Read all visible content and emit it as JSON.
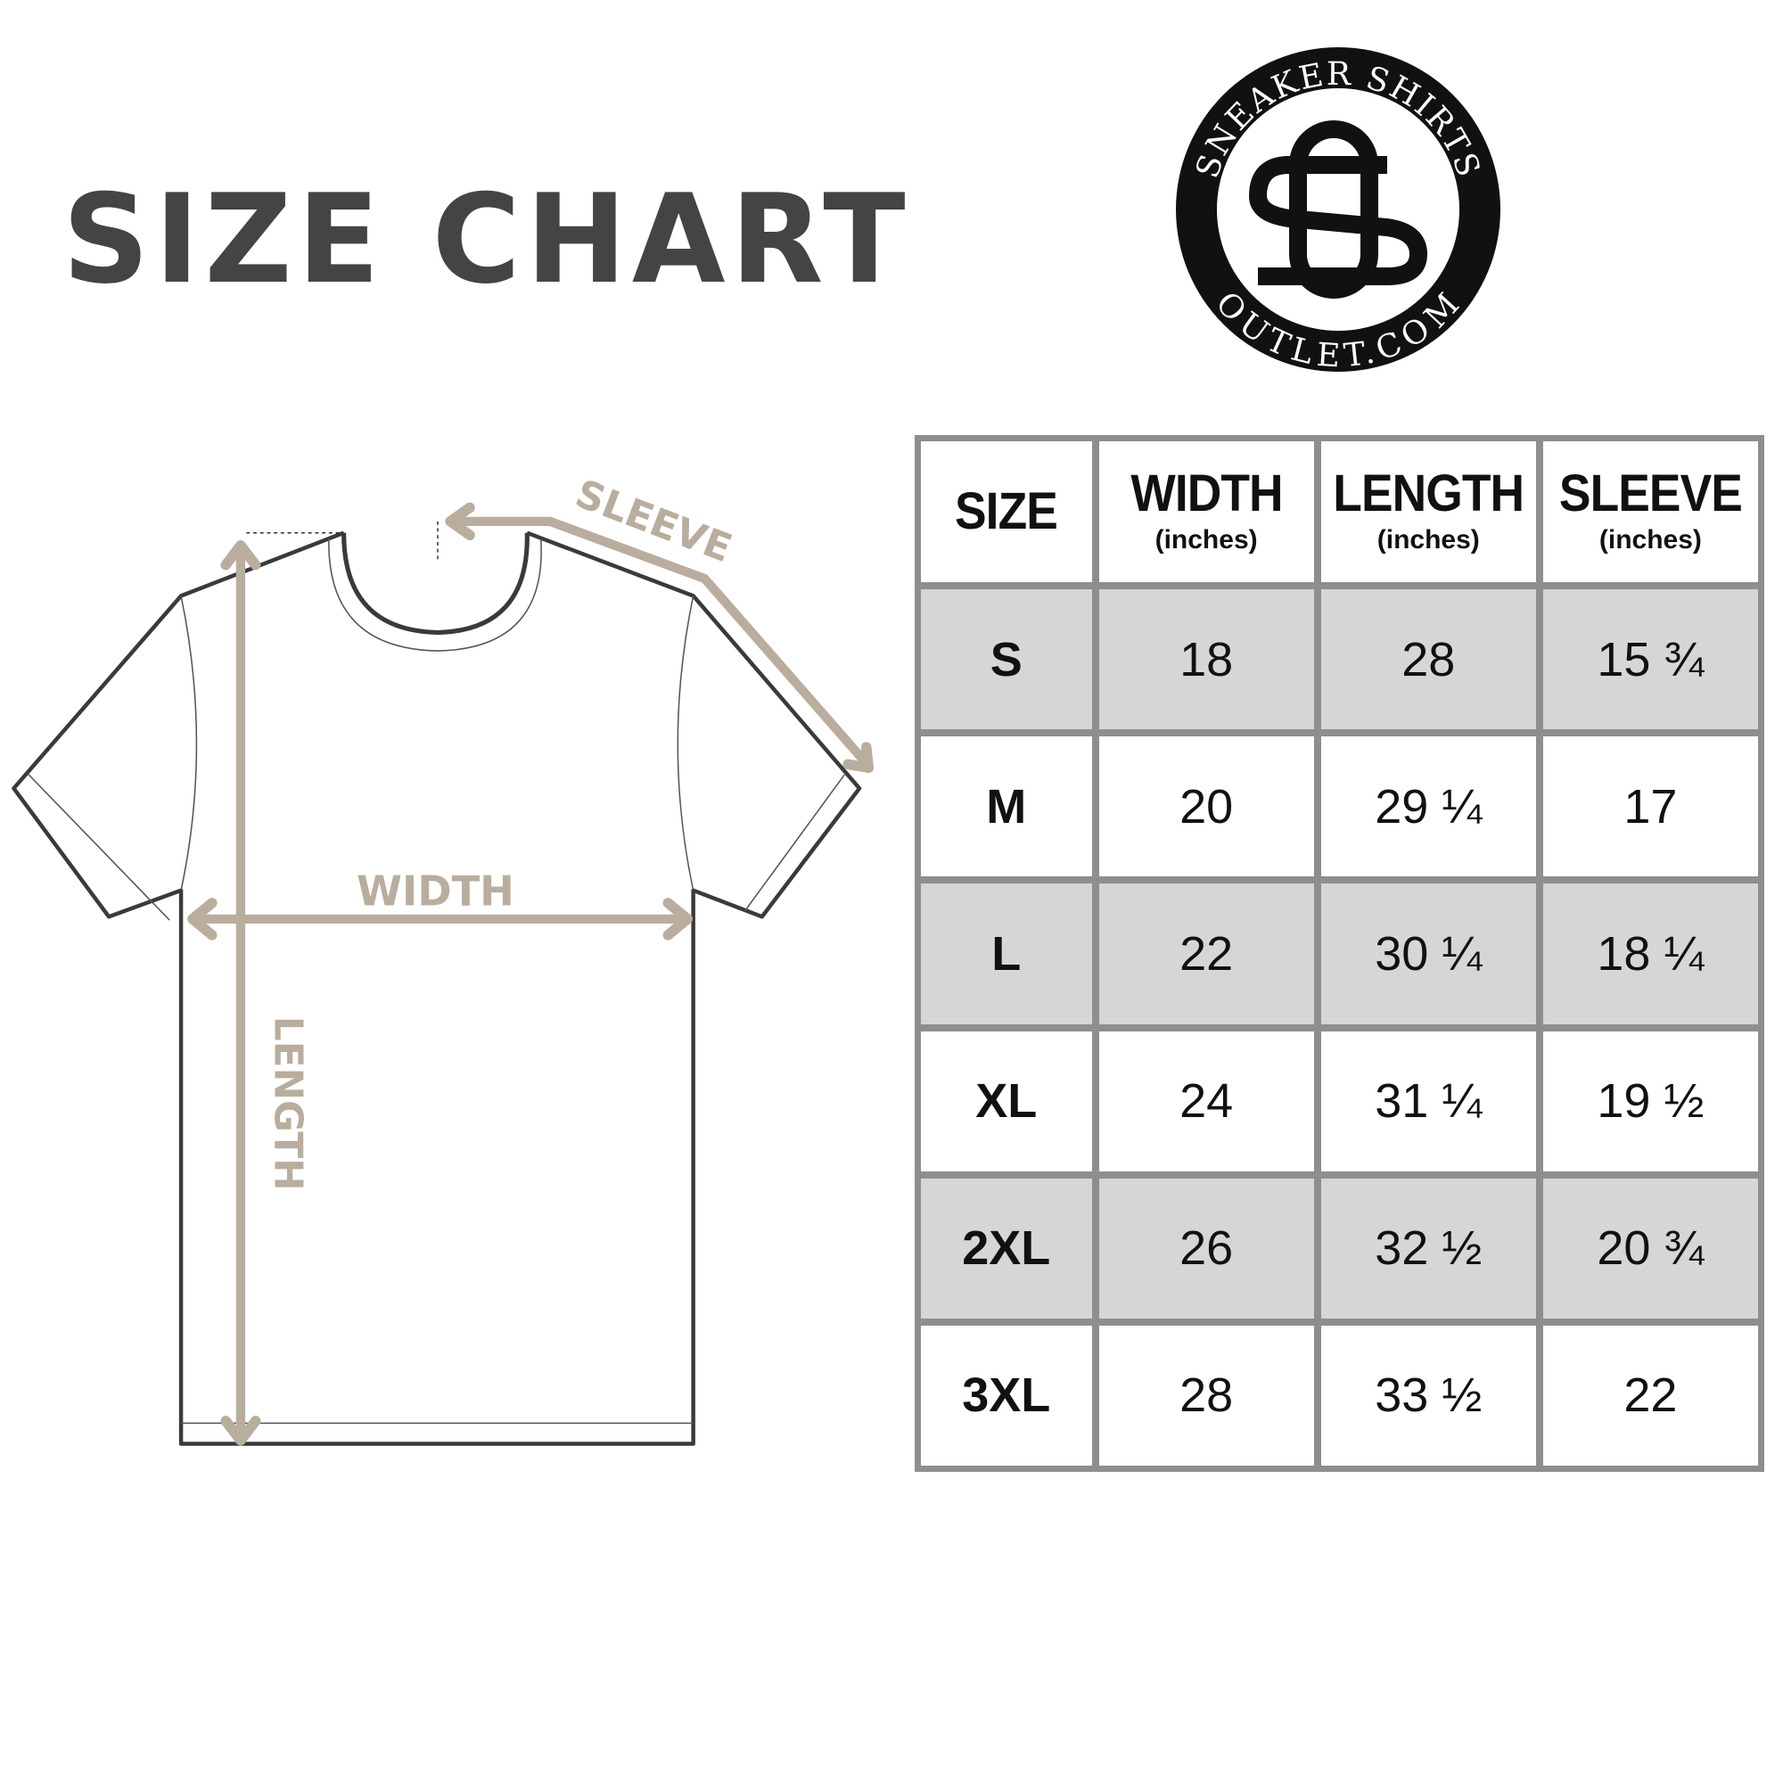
{
  "title": "SIZE CHART",
  "logo": {
    "top_text": "SNEAKER SHIRTS",
    "bottom_text": "OUTLET.COM",
    "monogram": "SO"
  },
  "diagram": {
    "sleeve_label": "SLEEVE",
    "width_label": "WIDTH",
    "length_label": "LENGTH",
    "arrow_color": "#b9ad9e",
    "outline_color": "#3a3a3a"
  },
  "table": {
    "headers": [
      {
        "label": "SIZE",
        "unit": ""
      },
      {
        "label": "WIDTH",
        "unit": "(inches)"
      },
      {
        "label": "LENGTH",
        "unit": "(inches)"
      },
      {
        "label": "SLEEVE",
        "unit": "(inches)"
      }
    ],
    "rows": [
      [
        "S",
        "18",
        "28",
        "15 ¾"
      ],
      [
        "M",
        "20",
        "29 ¼",
        "17"
      ],
      [
        "L",
        "22",
        "30 ¼",
        "18 ¼"
      ],
      [
        "XL",
        "24",
        "31 ¼",
        "19 ½"
      ],
      [
        "2XL",
        "26",
        "32 ½",
        "20 ¾"
      ],
      [
        "3XL",
        "28",
        "33 ½",
        "22"
      ]
    ],
    "shade_color": "#d6d6d6",
    "border_color": "#8e8e8e"
  }
}
